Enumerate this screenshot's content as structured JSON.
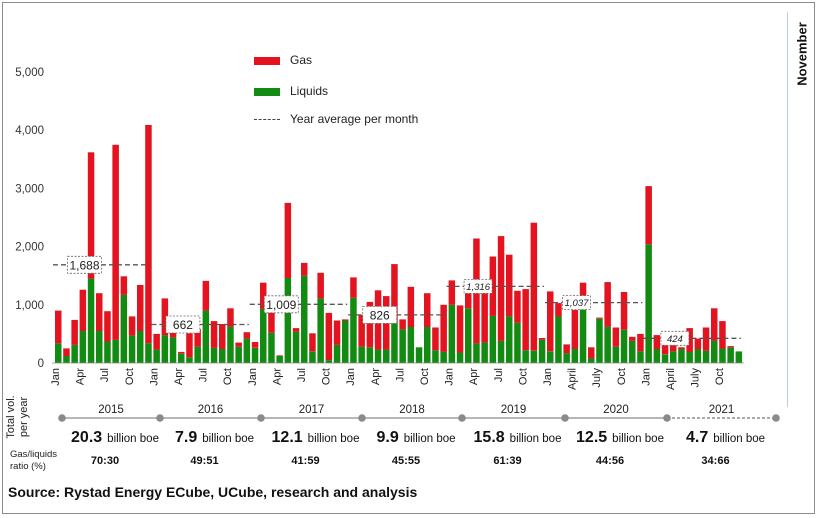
{
  "side_label": "November",
  "source": "Source: Rystad Energy ECube, UCube, research and analysis",
  "legend": [
    {
      "label": "Gas",
      "color": "#e3131f",
      "kind": "bar"
    },
    {
      "label": "Liquids",
      "color": "#138b12",
      "kind": "bar"
    },
    {
      "label": "Year average per month",
      "color": "#444444",
      "kind": "dash"
    }
  ],
  "summary": {
    "vol_label_line1": "Total vol.",
    "vol_label_line2": "per year",
    "ratio_label_line1": "Gas/liquids",
    "ratio_label_line2": "ratio (%)",
    "unit": "billion boe",
    "years": [
      {
        "year": "2015",
        "volume": "20.3",
        "ratio": "70:30"
      },
      {
        "year": "2016",
        "volume": "7.9",
        "ratio": "49:51"
      },
      {
        "year": "2017",
        "volume": "12.1",
        "ratio": "41:59"
      },
      {
        "year": "2018",
        "volume": "9.9",
        "ratio": "45:55"
      },
      {
        "year": "2019",
        "volume": "15.8",
        "ratio": "61:39"
      },
      {
        "year": "2020",
        "volume": "12.5",
        "ratio": "44:56"
      },
      {
        "year": "2021",
        "volume": "4.7",
        "ratio": "34:66"
      }
    ]
  },
  "chart_data": {
    "type": "bar",
    "stacked": true,
    "ylim": [
      0,
      5000
    ],
    "yticks": [
      "0",
      "1,000",
      "2,000",
      "3,000",
      "4,000",
      "5,000"
    ],
    "grid": false,
    "legend_position": "top-center",
    "month_labels": [
      "Jan",
      "Apr",
      "Jul",
      "Oct",
      "Jan",
      "Apr",
      "Jul",
      "Oct",
      "Jan",
      "Apr",
      "Jul",
      "Oct",
      "Jan",
      "Apr",
      "Jul",
      "Oct",
      "Jan",
      "Apr",
      "Jul",
      "Oct",
      "Jan",
      "April",
      "July",
      "Oct",
      "Jan",
      "April",
      "July",
      "Oct"
    ],
    "series": [
      {
        "name": "Gas",
        "color": "#e3131f",
        "values": [
          560,
          130,
          430,
          710,
          2170,
          650,
          520,
          3350,
          320,
          330,
          790,
          3750,
          270,
          630,
          110,
          30,
          410,
          300,
          510,
          460,
          430,
          320,
          70,
          110,
          100,
          450,
          480,
          10,
          1290,
          60,
          220,
          310,
          440,
          810,
          420,
          20,
          350,
          550,
          780,
          1020,
          920,
          1000,
          170,
          690,
          0,
          580,
          390,
          810,
          420,
          810,
          400,
          1800,
          980,
          1020,
          1800,
          1060,
          550,
          1050,
          2200,
          30,
          1030,
          230,
          150,
          670,
          380,
          190,
          20,
          770,
          330,
          650,
          70,
          300,
          1000,
          240,
          260,
          220,
          30,
          410,
          180,
          400,
          560,
          470,
          20
        ]
      },
      {
        "name": "Liquids",
        "color": "#138b12",
        "values": [
          340,
          120,
          310,
          550,
          1450,
          550,
          370,
          400,
          1170,
          470,
          550,
          340,
          230,
          480,
          440,
          160,
          100,
          280,
          900,
          260,
          240,
          620,
          280,
          420,
          260,
          930,
          520,
          120,
          1460,
          540,
          1500,
          200,
          1110,
          50,
          310,
          730,
          1120,
          280,
          270,
          230,
          230,
          700,
          580,
          620,
          270,
          620,
          220,
          190,
          1000,
          180,
          940,
          340,
          350,
          810,
          380,
          800,
          690,
          220,
          210,
          400,
          200,
          800,
          170,
          240,
          1000,
          80,
          760,
          620,
          280,
          570,
          380,
          200,
          2040,
          240,
          150,
          200,
          240,
          190,
          240,
          210,
          380,
          250,
          270,
          200
        ]
      }
    ],
    "year_averages": [
      "1,688",
      "662",
      "1,009",
      "826",
      "1,316",
      "1,037",
      "424"
    ],
    "year_average_values": [
      1688,
      662,
      1009,
      826,
      1316,
      1037,
      424
    ]
  }
}
